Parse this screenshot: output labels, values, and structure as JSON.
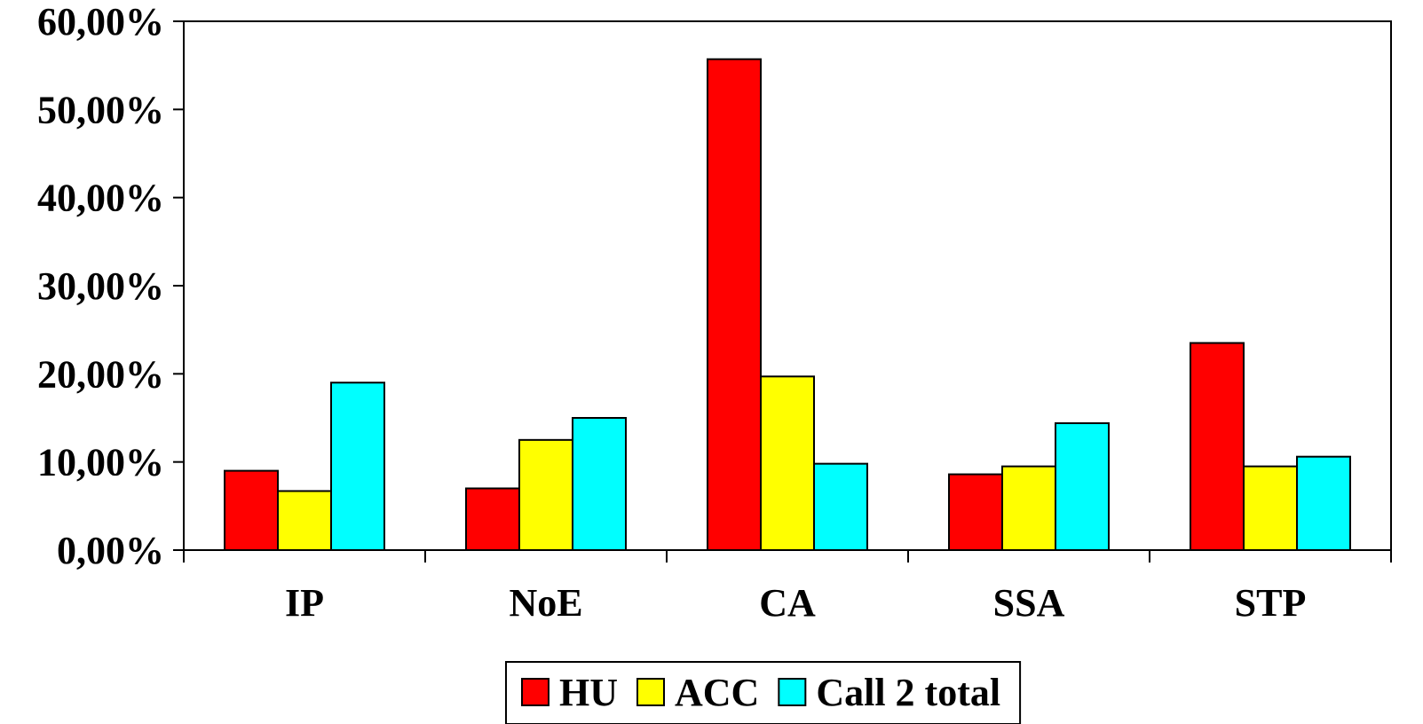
{
  "chart_data": {
    "type": "bar",
    "title": "",
    "xlabel": "",
    "ylabel": "",
    "categories": [
      "IP",
      "NoE",
      "CA",
      "SSA",
      "STP"
    ],
    "series": [
      {
        "name": "HU",
        "color": "#ff0000",
        "values": [
          0.09,
          0.07,
          0.557,
          0.086,
          0.235
        ]
      },
      {
        "name": "ACC",
        "color": "#ffff00",
        "values": [
          0.067,
          0.125,
          0.197,
          0.095,
          0.095
        ]
      },
      {
        "name": "Call 2 total",
        "color": "#00ffff",
        "values": [
          0.19,
          0.15,
          0.098,
          0.144,
          0.106
        ]
      }
    ],
    "ylim": [
      0,
      0.6
    ],
    "yticks": [
      "0,00%",
      "10,00%",
      "20,00%",
      "30,00%",
      "40,00%",
      "50,00%",
      "60,00%"
    ],
    "grid": false,
    "legend": {
      "position": "bottom-center",
      "entries": [
        "HU",
        "ACC",
        "Call 2 total"
      ]
    }
  }
}
